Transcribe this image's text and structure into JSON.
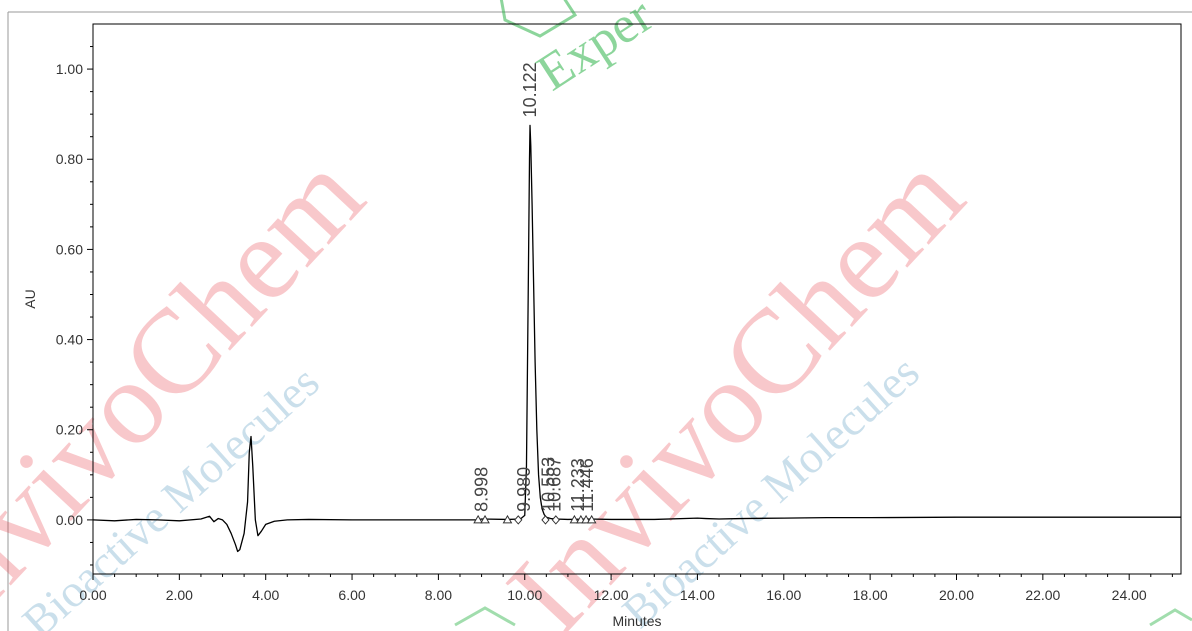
{
  "chart_data": {
    "type": "line",
    "title": "",
    "xlabel": "Minutes",
    "ylabel": "AU",
    "xlim": [
      0,
      25.2
    ],
    "ylim": [
      -0.12,
      1.1
    ],
    "x_ticks": [
      0,
      2,
      4,
      6,
      8,
      10,
      12,
      14,
      16,
      18,
      20,
      22,
      24
    ],
    "x_tick_labels": [
      "0.00",
      "2.00",
      "4.00",
      "6.00",
      "8.00",
      "10.00",
      "12.00",
      "14.00",
      "16.00",
      "18.00",
      "20.00",
      "22.00",
      "24.00"
    ],
    "y_ticks": [
      0,
      0.2,
      0.4,
      0.6,
      0.8,
      1.0
    ],
    "y_tick_labels": [
      "0.00",
      "0.20",
      "0.40",
      "0.60",
      "0.80",
      "1.00"
    ],
    "grid": false,
    "legend": "none",
    "series": [
      {
        "color": "#000000",
        "x": [
          0,
          0.5,
          1.0,
          1.5,
          2.0,
          2.5,
          2.7,
          2.8,
          2.9,
          3.0,
          3.1,
          3.2,
          3.3,
          3.35,
          3.4,
          3.5,
          3.58,
          3.62,
          3.66,
          3.7,
          3.76,
          3.82,
          3.9,
          4.0,
          4.2,
          4.5,
          5.0,
          6.0,
          7.0,
          8.0,
          8.9,
          9.0,
          9.6,
          9.9,
          10.0,
          10.04,
          10.08,
          10.11,
          10.122,
          10.14,
          10.17,
          10.2,
          10.24,
          10.28,
          10.32,
          10.36,
          10.4,
          10.45,
          10.5,
          10.6,
          10.7,
          11.0,
          11.5,
          12.0,
          13.0,
          14.0,
          14.2,
          14.5,
          15.0,
          16.0,
          17.0,
          18.0,
          20.0,
          22.0,
          24.0,
          25.2
        ],
        "y": [
          0.0,
          -0.002,
          0.001,
          0.0,
          -0.002,
          0.002,
          0.008,
          -0.004,
          0.003,
          0.0,
          -0.01,
          -0.03,
          -0.055,
          -0.07,
          -0.066,
          -0.03,
          0.04,
          0.15,
          0.185,
          0.12,
          0.0,
          -0.035,
          -0.025,
          -0.01,
          -0.003,
          0.0,
          0.001,
          0.0,
          0.0,
          0.0,
          0.0,
          0.002,
          0.001,
          0.002,
          0.01,
          0.12,
          0.5,
          0.8,
          0.875,
          0.83,
          0.7,
          0.55,
          0.35,
          0.2,
          0.1,
          0.05,
          0.025,
          0.012,
          0.006,
          0.003,
          0.002,
          0.001,
          0.002,
          0.001,
          0.001,
          0.004,
          0.003,
          0.002,
          0.003,
          0.004,
          0.005,
          0.005,
          0.006,
          0.006,
          0.006,
          0.006
        ]
      }
    ],
    "peaks": [
      {
        "label": "8.998",
        "x": 8.998
      },
      {
        "label": "9.980",
        "x": 9.98
      },
      {
        "label": "10.122",
        "x": 10.122
      },
      {
        "label": "10.553",
        "x": 10.553
      },
      {
        "label": "10.687",
        "x": 10.687
      },
      {
        "label": "11.233",
        "x": 11.233
      },
      {
        "label": "11.446",
        "x": 11.446
      }
    ],
    "markers": [
      {
        "x": 8.92,
        "shape": "triangle"
      },
      {
        "x": 9.08,
        "shape": "triangle"
      },
      {
        "x": 9.6,
        "shape": "triangle"
      },
      {
        "x": 9.85,
        "shape": "diamond"
      },
      {
        "x": 10.48,
        "shape": "diamond"
      },
      {
        "x": 10.72,
        "shape": "diamond"
      },
      {
        "x": 11.15,
        "shape": "triangle"
      },
      {
        "x": 11.3,
        "shape": "triangle"
      },
      {
        "x": 11.42,
        "shape": "triangle"
      },
      {
        "x": 11.55,
        "shape": "triangle"
      }
    ]
  },
  "watermark": {
    "brand_text": "InvivoChem",
    "subtitle_text": "Bioactive Molecules",
    "tagline_partial": "Exper",
    "brand_color": "#e8303a",
    "subtitle_color": "#6aa5c8",
    "accent_color": "#2fb34a",
    "yellow_color": "#e6b800"
  }
}
